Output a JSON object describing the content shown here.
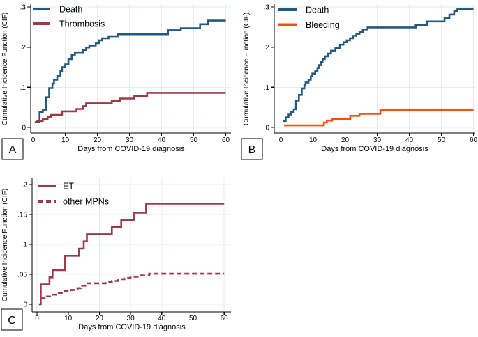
{
  "figure": {
    "background": "#ffffff",
    "colors": {
      "navy": "#24587c",
      "maroon": "#9c3a4a",
      "orange": "#f94f0e",
      "grid": "#e3edf1",
      "axis": "#000000",
      "text": "#000000",
      "panel_box_border": "#000000"
    },
    "xlabel": "Days from COVID-19 diagnosis",
    "ylabel": "Cumulative Incidence Function (CIF)"
  },
  "chart_data": [
    {
      "panel": "A",
      "type": "line",
      "subtype": "step-cumulative-incidence",
      "xlabel": "Days from COVID-19 diagnosis",
      "ylabel": "Cumulative Incidence Function (CIF)",
      "xlim": [
        0,
        60
      ],
      "ylim": [
        0,
        0.3
      ],
      "x_ticks": [
        0,
        10,
        20,
        30,
        40,
        50,
        60
      ],
      "y_ticks": [
        {
          "v": 0,
          "label": "0"
        },
        {
          "v": 0.1,
          "label": ".1"
        },
        {
          "v": 0.2,
          "label": ".2"
        },
        {
          "v": 0.3,
          "label": ".3"
        }
      ],
      "grid": true,
      "legend_position": "top-left",
      "series": [
        {
          "name": "Death",
          "color": "navy",
          "style": "solid",
          "points": [
            [
              0.5,
              0.013
            ],
            [
              2,
              0.038
            ],
            [
              3,
              0.044
            ],
            [
              4,
              0.075
            ],
            [
              5,
              0.098
            ],
            [
              6,
              0.109
            ],
            [
              6.5,
              0.119
            ],
            [
              7.5,
              0.129
            ],
            [
              8.5,
              0.14
            ],
            [
              9,
              0.15
            ],
            [
              10,
              0.157
            ],
            [
              11,
              0.17
            ],
            [
              12,
              0.181
            ],
            [
              13,
              0.187
            ],
            [
              15.5,
              0.193
            ],
            [
              16.5,
              0.199
            ],
            [
              17.5,
              0.204
            ],
            [
              19.5,
              0.21
            ],
            [
              20.5,
              0.217
            ],
            [
              21.5,
              0.222
            ],
            [
              23.5,
              0.227
            ],
            [
              26.5,
              0.232
            ],
            [
              42,
              0.242
            ],
            [
              46,
              0.247
            ],
            [
              52,
              0.257
            ],
            [
              54.5,
              0.266
            ],
            [
              60,
              0.266
            ]
          ]
        },
        {
          "name": "Thrombosis",
          "color": "maroon",
          "style": "solid",
          "points": [
            [
              1,
              0.016
            ],
            [
              3,
              0.021
            ],
            [
              4.5,
              0.026
            ],
            [
              5.5,
              0.031
            ],
            [
              9,
              0.04
            ],
            [
              13.5,
              0.046
            ],
            [
              15.5,
              0.053
            ],
            [
              16.5,
              0.06
            ],
            [
              24.5,
              0.066
            ],
            [
              27,
              0.072
            ],
            [
              31.5,
              0.078
            ],
            [
              35.5,
              0.086
            ],
            [
              60,
              0.086
            ]
          ]
        }
      ]
    },
    {
      "panel": "B",
      "type": "line",
      "subtype": "step-cumulative-incidence",
      "xlabel": "Days from COVID-19 diagnosis",
      "ylabel": "Cumulative Incidence Function (CIF)",
      "xlim": [
        0,
        60
      ],
      "ylim": [
        0,
        0.3
      ],
      "x_ticks": [
        0,
        10,
        20,
        30,
        40,
        50,
        60
      ],
      "y_ticks": [
        {
          "v": 0,
          "label": "0"
        },
        {
          "v": 0.1,
          "label": ".1"
        },
        {
          "v": 0.2,
          "label": ".2"
        },
        {
          "v": 0.3,
          "label": ".3"
        }
      ],
      "grid": true,
      "legend_position": "top-left",
      "series": [
        {
          "name": "Death",
          "color": "navy",
          "style": "solid",
          "points": [
            [
              0.7,
              0.016
            ],
            [
              1.5,
              0.025
            ],
            [
              2.4,
              0.032
            ],
            [
              3.1,
              0.038
            ],
            [
              4,
              0.045
            ],
            [
              4.7,
              0.067
            ],
            [
              5.6,
              0.081
            ],
            [
              6.5,
              0.097
            ],
            [
              7.3,
              0.105
            ],
            [
              7.7,
              0.112
            ],
            [
              8.6,
              0.119
            ],
            [
              9.3,
              0.127
            ],
            [
              9.8,
              0.134
            ],
            [
              10.7,
              0.141
            ],
            [
              11.4,
              0.148
            ],
            [
              11.8,
              0.155
            ],
            [
              12.5,
              0.163
            ],
            [
              13,
              0.17
            ],
            [
              13.7,
              0.177
            ],
            [
              14.6,
              0.184
            ],
            [
              15.6,
              0.191
            ],
            [
              17,
              0.198
            ],
            [
              18.4,
              0.206
            ],
            [
              19.5,
              0.212
            ],
            [
              20.5,
              0.217
            ],
            [
              21.5,
              0.222
            ],
            [
              22.5,
              0.228
            ],
            [
              23.5,
              0.233
            ],
            [
              24.5,
              0.238
            ],
            [
              25.5,
              0.244
            ],
            [
              27,
              0.249
            ],
            [
              42,
              0.255
            ],
            [
              45.5,
              0.264
            ],
            [
              51,
              0.272
            ],
            [
              52.5,
              0.281
            ],
            [
              54,
              0.29
            ],
            [
              55,
              0.295
            ],
            [
              60,
              0.295
            ]
          ]
        },
        {
          "name": "Bleeding",
          "color": "orange",
          "style": "solid",
          "points": [
            [
              1,
              0.005
            ],
            [
              13.4,
              0.012
            ],
            [
              14.3,
              0.017
            ],
            [
              16,
              0.021
            ],
            [
              21.6,
              0.029
            ],
            [
              24.5,
              0.034
            ],
            [
              31,
              0.043
            ],
            [
              60,
              0.043
            ]
          ]
        }
      ]
    },
    {
      "panel": "C",
      "type": "line",
      "subtype": "step-cumulative-incidence",
      "xlabel": "Days from COVID-19 diagnosis",
      "ylabel": "Cumulative Incidence Function (CIF)",
      "xlim": [
        0,
        60
      ],
      "ylim": [
        0,
        0.2
      ],
      "x_ticks": [
        0,
        10,
        20,
        30,
        40,
        50,
        60
      ],
      "y_ticks": [
        {
          "v": 0,
          "label": "0"
        },
        {
          "v": 0.05,
          "label": ".05"
        },
        {
          "v": 0.1,
          "label": ".1"
        },
        {
          "v": 0.15,
          "label": ".15"
        },
        {
          "v": 0.2,
          "label": ".2"
        }
      ],
      "grid": true,
      "legend_position": "top-left",
      "series": [
        {
          "name": "ET",
          "color": "maroon",
          "style": "solid",
          "points": [
            [
              0.6,
              0
            ],
            [
              1.2,
              0.033
            ],
            [
              4,
              0.045
            ],
            [
              5,
              0.057
            ],
            [
              9,
              0.081
            ],
            [
              13.5,
              0.093
            ],
            [
              15,
              0.105
            ],
            [
              16,
              0.117
            ],
            [
              24,
              0.129
            ],
            [
              27,
              0.141
            ],
            [
              31,
              0.153
            ],
            [
              35,
              0.168
            ],
            [
              60,
              0.168
            ]
          ]
        },
        {
          "name": "other MPNs",
          "color": "maroon",
          "style": "dashed",
          "points": [
            [
              1,
              0.01
            ],
            [
              2.5,
              0.013
            ],
            [
              4.5,
              0.016
            ],
            [
              6.5,
              0.019
            ],
            [
              9,
              0.022
            ],
            [
              11,
              0.024
            ],
            [
              13,
              0.027
            ],
            [
              14,
              0.031
            ],
            [
              15.5,
              0.035
            ],
            [
              22,
              0.037
            ],
            [
              24,
              0.039
            ],
            [
              26,
              0.042
            ],
            [
              28,
              0.044
            ],
            [
              30,
              0.046
            ],
            [
              33,
              0.048
            ],
            [
              36,
              0.051
            ],
            [
              60,
              0.051
            ]
          ]
        }
      ]
    }
  ]
}
